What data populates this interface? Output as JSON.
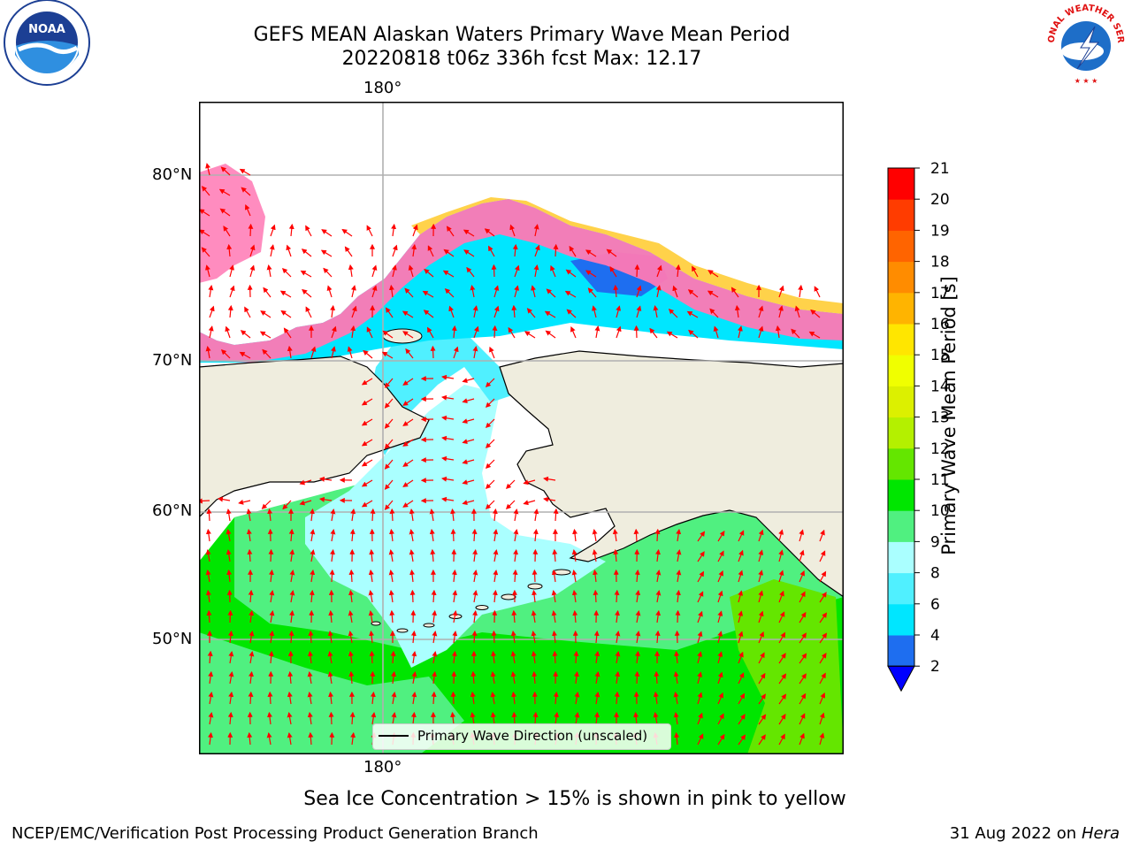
{
  "title_line1": "GEFS MEAN Alaskan Waters Primary Wave Mean Period",
  "title_line2": "20220818 t06z 336h fcst   Max: 12.17",
  "map": {
    "lon_label_top": "180°",
    "lon_label_bottom": "180°",
    "lat_labels": [
      "80°N",
      "70°N",
      "60°N",
      "50°N"
    ],
    "legend_label": "Primary Wave Direction (unscaled)",
    "land_color": "#efedde",
    "ocean_color": "#ffffff",
    "arrow_color": "#ff0000",
    "grid_color": "#b0b0b0"
  },
  "colorbar": {
    "label": "Primary Wave Mean Period [s]",
    "ticks": [
      "2",
      "4",
      "6",
      "8",
      "9",
      "10",
      "11",
      "12",
      "13",
      "14",
      "15",
      "16",
      "17",
      "18",
      "19",
      "20",
      "21"
    ],
    "colors": [
      "#1e6ef0",
      "#00e6ff",
      "#50f0ff",
      "#aaffff",
      "#50f080",
      "#00e600",
      "#64e600",
      "#b4f000",
      "#dcf000",
      "#f0ff00",
      "#ffe600",
      "#ffb400",
      "#ff8c00",
      "#ff6400",
      "#ff3c00",
      "#ff0000"
    ],
    "extend_color": "#0000ff"
  },
  "caption": "Sea Ice Concentration > 15% is shown in pink to yellow",
  "footer_left": "NCEP/EMC/Verification Post Processing Product Generation Branch",
  "footer_right_date": "31 Aug 2022 on",
  "footer_right_host": "Hera",
  "logos": {
    "noaa": "NOAA",
    "nws": "NATIONAL WEATHER SERVICE"
  }
}
